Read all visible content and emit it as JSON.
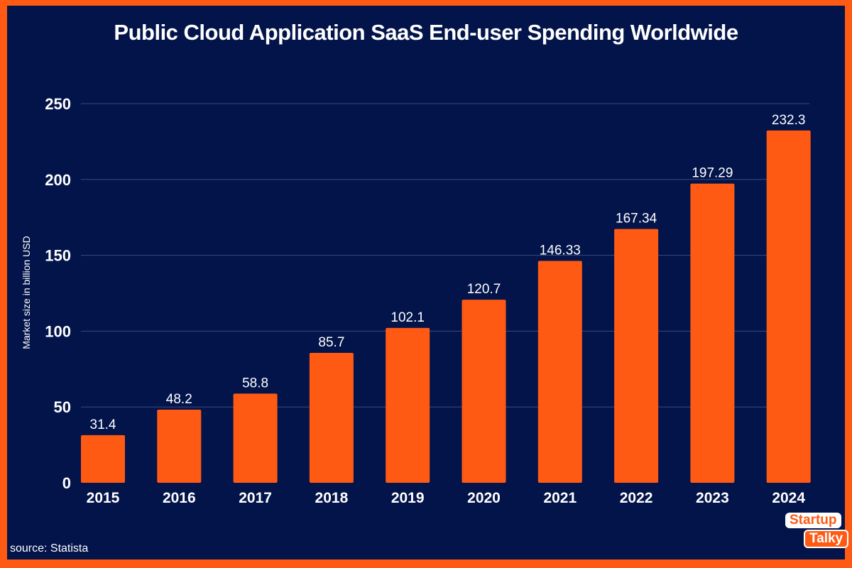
{
  "chart_data": {
    "type": "bar",
    "title": "Public Cloud Application SaaS End-user Spending Worldwide",
    "xlabel": "",
    "ylabel": "Market size in billion USD",
    "categories": [
      "2015",
      "2016",
      "2017",
      "2018",
      "2019",
      "2020",
      "2021",
      "2022",
      "2023",
      "2024"
    ],
    "values": [
      31.4,
      48.2,
      58.8,
      85.7,
      102.1,
      120.7,
      146.33,
      167.34,
      197.29,
      232.3
    ],
    "value_labels": [
      "31.4",
      "48.2",
      "58.8",
      "85.7",
      "102.1",
      "120.7",
      "146.33",
      "167.34",
      "197.29",
      "232.3"
    ],
    "ylim": [
      0,
      250
    ],
    "yticks": [
      0,
      50,
      100,
      150,
      200,
      250
    ],
    "grid": true,
    "colors": {
      "bar": "#ff5a14",
      "background": "#03144a",
      "border": "#ff5a14",
      "grid": "#3a4a7a"
    }
  },
  "source": "source: Statista",
  "logo": {
    "line1": "Startup",
    "line2": "Talky"
  }
}
